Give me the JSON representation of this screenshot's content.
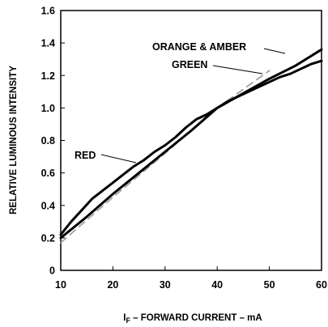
{
  "chart_data": {
    "type": "line",
    "xlabel_prefix": "I",
    "xlabel_sub": "F",
    "xlabel_rest": " – FORWARD CURRENT – mA",
    "ylabel": "RELATIVE LUMINOUS INTENSITY",
    "xlim": [
      10,
      60
    ],
    "ylim": [
      0,
      1.6
    ],
    "xticks": [
      10,
      20,
      30,
      40,
      50,
      60
    ],
    "yticks": [
      0,
      0.2,
      0.4,
      0.6,
      0.8,
      1.0,
      1.2,
      1.4,
      1.6
    ],
    "ytick_labels": [
      "0",
      "0.2",
      "0.4",
      "0.6",
      "0.8",
      "1.0",
      "1.2",
      "1.4",
      "1.6"
    ],
    "grid": false,
    "annotations": [
      "RED",
      "ORANGE & AMBER",
      "GREEN"
    ],
    "series": [
      {
        "name": "RED",
        "style": "solid",
        "color": "#000000",
        "x": [
          10,
          12,
          14,
          16,
          18,
          20,
          22,
          24,
          26,
          28,
          30,
          32,
          34,
          36,
          38,
          40,
          42,
          44,
          46,
          48,
          50,
          52,
          54,
          56,
          58,
          60
        ],
        "y": [
          0.22,
          0.3,
          0.37,
          0.44,
          0.49,
          0.54,
          0.59,
          0.64,
          0.68,
          0.73,
          0.77,
          0.82,
          0.88,
          0.93,
          0.96,
          1.0,
          1.04,
          1.07,
          1.1,
          1.13,
          1.16,
          1.19,
          1.21,
          1.24,
          1.27,
          1.29
        ]
      },
      {
        "name": "ORANGE & AMBER",
        "style": "solid",
        "color": "#000000",
        "x": [
          10,
          15,
          20,
          25,
          30,
          35,
          40,
          45,
          50,
          55,
          60
        ],
        "y": [
          0.2,
          0.33,
          0.47,
          0.6,
          0.73,
          0.86,
          1.0,
          1.09,
          1.18,
          1.26,
          1.36
        ]
      },
      {
        "name": "GREEN",
        "style": "dashed",
        "color": "#999999",
        "x": [
          10,
          20,
          30,
          40,
          50
        ],
        "y": [
          0.17,
          0.45,
          0.72,
          1.0,
          1.23
        ]
      }
    ]
  }
}
